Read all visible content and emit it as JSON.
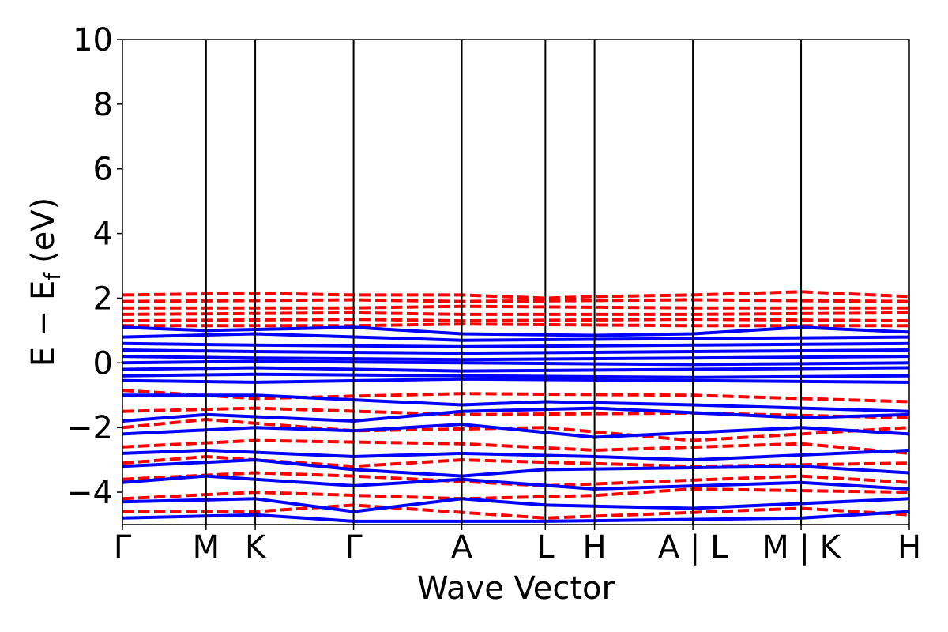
{
  "chart_data": {
    "type": "line",
    "xlabel": "Wave Vector",
    "ylabel_parts": {
      "main": "E − E",
      "sub": "f",
      "unit": "(eV)"
    },
    "ylim": [
      -5,
      10
    ],
    "yticks": [
      -4,
      -2,
      0,
      2,
      4,
      6,
      8,
      10
    ],
    "ytick_labels": [
      "−4",
      "−2",
      "0",
      "2",
      "4",
      "6",
      "8",
      "10"
    ],
    "kpath": {
      "positions": [
        0,
        0.85,
        1.35,
        2.35,
        3.45,
        4.3,
        4.8,
        5.8,
        6.9,
        8.0
      ],
      "labels": [
        "Γ",
        "M",
        "K",
        "Γ",
        "A",
        "L",
        "H",
        "A | L",
        "M | K",
        "H"
      ]
    },
    "series": [
      {
        "style": "dashed",
        "color": "#ff0000",
        "bands": [
          {
            "x": [
              0,
              1.35,
              2.35,
              3.45,
              4.3,
              4.8,
              5.8,
              6.9,
              8.0
            ],
            "y": [
              2.1,
              2.15,
              2.1,
              2.1,
              2.0,
              2.05,
              2.1,
              2.2,
              2.05
            ]
          },
          {
            "x": [
              0,
              2.35,
              3.45,
              5.8,
              8.0
            ],
            "y": [
              1.9,
              1.95,
              1.9,
              1.95,
              1.9
            ]
          },
          {
            "x": [
              0,
              2.35,
              3.45,
              5.8,
              8.0
            ],
            "y": [
              1.7,
              1.7,
              1.75,
              1.7,
              1.7
            ]
          },
          {
            "x": [
              0,
              2.35,
              3.45,
              5.8,
              8.0
            ],
            "y": [
              1.5,
              1.55,
              1.5,
              1.5,
              1.55
            ]
          },
          {
            "x": [
              0,
              2.35,
              3.45,
              5.8,
              8.0
            ],
            "y": [
              1.3,
              1.35,
              1.3,
              1.35,
              1.3
            ]
          },
          {
            "x": [
              0,
              2.35,
              3.45,
              5.8,
              8.0
            ],
            "y": [
              1.15,
              1.15,
              1.2,
              1.15,
              1.15
            ]
          },
          {
            "x": [
              0,
              1.35,
              3.45,
              5.8,
              8.0
            ],
            "y": [
              -0.85,
              -1.1,
              -0.95,
              -1.0,
              -1.2
            ]
          },
          {
            "x": [
              0,
              1.35,
              3.45,
              5.8,
              8.0
            ],
            "y": [
              -1.5,
              -1.4,
              -1.6,
              -1.55,
              -1.7
            ]
          },
          {
            "x": [
              0,
              0.85,
              2.35,
              4.3,
              5.8,
              8.0
            ],
            "y": [
              -2.0,
              -1.75,
              -2.1,
              -2.0,
              -2.4,
              -2.0
            ]
          },
          {
            "x": [
              0,
              1.35,
              3.45,
              4.8,
              6.9,
              8.0
            ],
            "y": [
              -2.6,
              -2.4,
              -2.5,
              -2.7,
              -2.5,
              -2.8
            ]
          },
          {
            "x": [
              0,
              0.85,
              2.35,
              3.45,
              5.8,
              8.0
            ],
            "y": [
              -3.1,
              -2.9,
              -3.2,
              -3.0,
              -3.2,
              -3.1
            ]
          },
          {
            "x": [
              0,
              1.35,
              2.35,
              4.3,
              6.9,
              8.0
            ],
            "y": [
              -3.6,
              -3.4,
              -3.5,
              -3.8,
              -3.5,
              -3.7
            ]
          },
          {
            "x": [
              0,
              1.35,
              3.45,
              4.8,
              5.8,
              8.0
            ],
            "y": [
              -4.2,
              -4.0,
              -4.2,
              -4.1,
              -3.9,
              -4.0
            ]
          },
          {
            "x": [
              0,
              1.35,
              2.35,
              4.3,
              6.9,
              8.0
            ],
            "y": [
              -4.6,
              -4.6,
              -4.4,
              -4.8,
              -4.5,
              -4.7
            ]
          }
        ]
      },
      {
        "style": "solid",
        "color": "#0000ff",
        "bands": [
          {
            "x": [
              0,
              0.85,
              2.35,
              3.45,
              4.8,
              5.8,
              6.9,
              8.0
            ],
            "y": [
              1.1,
              1.0,
              1.1,
              0.9,
              0.85,
              0.9,
              1.1,
              0.95
            ]
          },
          {
            "x": [
              0,
              1.35,
              3.45,
              5.8,
              8.0
            ],
            "y": [
              0.8,
              0.9,
              0.7,
              0.75,
              0.8
            ]
          },
          {
            "x": [
              0,
              1.35,
              3.45,
              5.8,
              8.0
            ],
            "y": [
              0.6,
              0.55,
              0.5,
              0.55,
              0.6
            ]
          },
          {
            "x": [
              0,
              1.35,
              3.45,
              5.8,
              8.0
            ],
            "y": [
              0.4,
              0.35,
              0.3,
              0.35,
              0.4
            ]
          },
          {
            "x": [
              0,
              1.35,
              3.45,
              5.8,
              8.0
            ],
            "y": [
              0.2,
              0.15,
              0.1,
              0.15,
              0.2
            ]
          },
          {
            "x": [
              0,
              1.35,
              3.45,
              5.8,
              8.0
            ],
            "y": [
              0.0,
              0.05,
              0.0,
              -0.05,
              0.0
            ]
          },
          {
            "x": [
              0,
              1.35,
              3.45,
              5.8,
              8.0
            ],
            "y": [
              -0.2,
              -0.15,
              -0.25,
              -0.2,
              -0.15
            ]
          },
          {
            "x": [
              0,
              1.35,
              3.45,
              5.8,
              8.0
            ],
            "y": [
              -0.4,
              -0.35,
              -0.4,
              -0.45,
              -0.4
            ]
          },
          {
            "x": [
              0,
              1.35,
              3.45,
              5.8,
              8.0
            ],
            "y": [
              -0.55,
              -0.6,
              -0.5,
              -0.55,
              -0.6
            ]
          },
          {
            "x": [
              0,
              1.35,
              3.45,
              4.3,
              5.8,
              8.0
            ],
            "y": [
              -1.0,
              -1.0,
              -1.3,
              -1.2,
              -1.3,
              -1.5
            ]
          },
          {
            "x": [
              0,
              0.85,
              2.35,
              3.45,
              4.8,
              6.9,
              8.0
            ],
            "y": [
              -1.8,
              -1.6,
              -1.8,
              -1.5,
              -1.4,
              -1.7,
              -1.6
            ]
          },
          {
            "x": [
              0,
              1.35,
              2.35,
              3.45,
              4.8,
              6.9,
              8.0
            ],
            "y": [
              -2.2,
              -2.0,
              -2.1,
              -1.9,
              -2.3,
              -2.0,
              -2.2
            ]
          },
          {
            "x": [
              0,
              0.85,
              2.35,
              3.45,
              4.8,
              5.8,
              8.0
            ],
            "y": [
              -2.8,
              -2.7,
              -2.9,
              -2.8,
              -2.9,
              -3.0,
              -2.7
            ]
          },
          {
            "x": [
              0,
              1.35,
              2.35,
              3.45,
              4.3,
              6.9,
              8.0
            ],
            "y": [
              -3.2,
              -3.0,
              -3.3,
              -3.5,
              -3.3,
              -3.2,
              -3.4
            ]
          },
          {
            "x": [
              0,
              0.85,
              2.35,
              3.45,
              4.8,
              6.9,
              8.0
            ],
            "y": [
              -3.7,
              -3.5,
              -3.8,
              -3.6,
              -3.9,
              -3.7,
              -3.9
            ]
          },
          {
            "x": [
              0,
              1.35,
              2.35,
              3.45,
              4.3,
              5.8,
              8.0
            ],
            "y": [
              -4.3,
              -4.2,
              -4.6,
              -4.2,
              -4.4,
              -4.5,
              -4.2
            ]
          },
          {
            "x": [
              0,
              1.35,
              2.35,
              4.3,
              6.9,
              8.0
            ],
            "y": [
              -4.8,
              -4.7,
              -4.9,
              -4.9,
              -4.8,
              -4.6
            ]
          }
        ]
      }
    ]
  }
}
